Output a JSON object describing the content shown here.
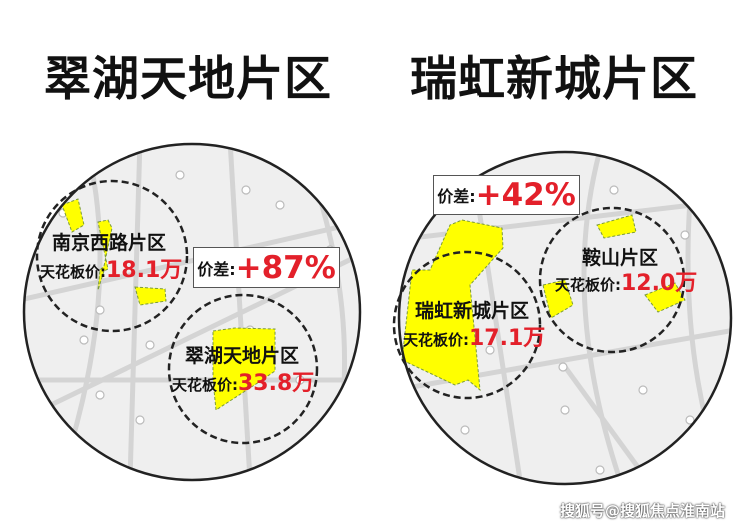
{
  "titles": {
    "left": "翠湖天地片区",
    "right": "瑞虹新城片区"
  },
  "left_map": {
    "zones": [
      {
        "name": "南京西路片区",
        "price_label": "天花板价:",
        "price": "18.1万"
      },
      {
        "name": "翠湖天地片区",
        "price_label": "天花板价:",
        "price": "33.8万"
      }
    ],
    "diff": {
      "label": "价差:",
      "value": "+87%"
    }
  },
  "right_map": {
    "zones": [
      {
        "name": "瑞虹新城片区",
        "price_label": "天花板价:",
        "price": "17.1万"
      },
      {
        "name": "鞍山片区",
        "price_label": "天花板价:",
        "price": "12.0万"
      }
    ],
    "diff": {
      "label": "价差:",
      "value": "+42%"
    }
  },
  "watermark": "搜狐号@搜狐焦点淮南站",
  "colors": {
    "highlight": "#ffff00",
    "price": "#e3202a",
    "map_bg": "#efefef"
  }
}
